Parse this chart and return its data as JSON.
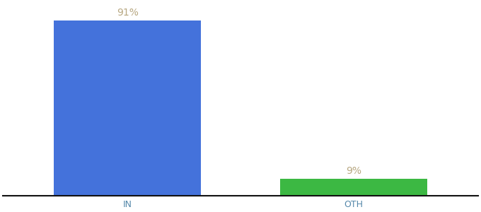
{
  "categories": [
    "IN",
    "OTH"
  ],
  "values": [
    91,
    9
  ],
  "bar_colors": [
    "#4472db",
    "#3cb843"
  ],
  "value_labels": [
    "91%",
    "9%"
  ],
  "ylim": [
    0,
    100
  ],
  "background_color": "#ffffff",
  "label_color": "#b8a882",
  "label_fontsize": 10,
  "tick_fontsize": 9,
  "tick_color": "#5588aa",
  "bar_width": 0.65,
  "spine_color": "#111111",
  "x_positions": [
    0,
    1
  ]
}
